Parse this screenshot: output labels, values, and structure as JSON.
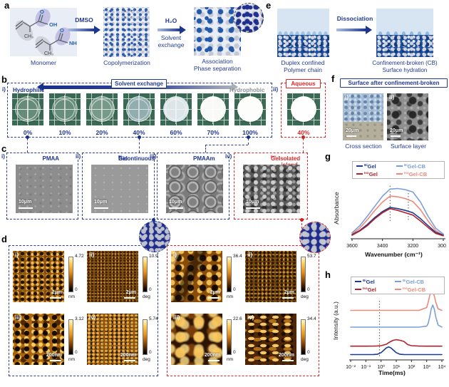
{
  "panels": {
    "a": {
      "label": "a",
      "chem": {
        "o1": "O",
        "oh": "OH",
        "ch3a": "CH₃",
        "o2": "O",
        "nh2": "NH₂",
        "ch3b": "CH₃"
      },
      "monomer_caption": "Monomer",
      "arrow1": "DMSO",
      "step1": "Copolymerization",
      "arrow2_top": "H₂O",
      "arrow2_bottom": "Solvent exchange",
      "step2_line1": "Association",
      "step2_line2": "Phase separation"
    },
    "e": {
      "label": "e",
      "arrow": "Dissociation",
      "left1": "Duplex confined",
      "left2": "Polymer chain",
      "right1": "Confinement-broken (CB)",
      "right2": "Surface hydration"
    },
    "b": {
      "label": "b",
      "i": "i)",
      "ii": "ii)",
      "hydrophilic": "Hydrophilic",
      "hydrophobic": "Hydrophobic",
      "arrow_label": "Solvent exchange",
      "aqueous": "Aqueous",
      "percentages": [
        "0%",
        "10%",
        "20%",
        "40%",
        "60%",
        "70%",
        "100%"
      ],
      "aqueous_pct": "40%"
    },
    "f": {
      "label": "f",
      "title": "Surface after confinement-broken",
      "i": "i)",
      "ii": "ii)",
      "scale1": "20μm",
      "scale2": "20μm",
      "caption1": "Cross section",
      "caption2": "Surface layer"
    },
    "c": {
      "label": "c",
      "items": [
        {
          "num": "i)",
          "title_pre": "PMAA",
          "title_sup": "",
          "title_post": "",
          "scale": "10μm"
        },
        {
          "num": "ii)",
          "title_pre": "Bicontinuous ",
          "title_sup": "Bi",
          "title_post": "Gel",
          "scale": "10μm"
        },
        {
          "num": "iii)",
          "title_pre": "PMAAm",
          "title_sup": "",
          "title_post": "",
          "scale": "10μm"
        },
        {
          "num": "iv)",
          "title_pre": "Isolated island ",
          "title_sup": "Iso",
          "title_post": "Gel",
          "scale": "10μm"
        }
      ]
    },
    "d": {
      "label": "d",
      "blue": [
        {
          "num": "i)",
          "max": "4.72",
          "min": "0",
          "unit": "nm",
          "scale": "2μm"
        },
        {
          "num": "ii)",
          "max": "10.9",
          "min": "0",
          "unit": "deg",
          "scale": "2μm"
        },
        {
          "num": "iii)",
          "max": "3.12",
          "min": "0",
          "unit": "nm",
          "scale": "200nm"
        },
        {
          "num": "iv)",
          "max": "5.74",
          "min": "0",
          "unit": "deg",
          "scale": "200nm"
        }
      ],
      "red": [
        {
          "num": "i)",
          "max": "36.4",
          "min": "0",
          "unit": "nm",
          "scale": "2μm"
        },
        {
          "num": "ii)",
          "max": "53.7",
          "min": "0",
          "unit": "deg",
          "scale": "2μm"
        },
        {
          "num": "iii)",
          "max": "22.6",
          "min": "0",
          "unit": "nm",
          "scale": "200nm"
        },
        {
          "num": "iv)",
          "max": "34.4",
          "min": "0",
          "unit": "deg",
          "scale": "200nm"
        }
      ]
    },
    "g": {
      "label": "g",
      "xlabel": "Wavenumber (cm⁻¹)",
      "ylabel": "Absorbance"
    },
    "h": {
      "label": "h",
      "xlabel": "Time(ms)",
      "ylabel": "Intensity (a.u.)"
    }
  },
  "legend": [
    {
      "sup": "Bi",
      "base": "Gel",
      "color": "#1c3a8e"
    },
    {
      "sup": "Iso",
      "base": "Gel",
      "color": "#b22228"
    },
    {
      "sup": "Bi",
      "base": "Gel-CB",
      "color": "#7aa0d6"
    },
    {
      "sup": "Iso",
      "base": "Gel-CB",
      "color": "#f0897b"
    }
  ],
  "colors": {
    "navy": "#1d3390",
    "red": "#e02528",
    "gray": "#8b929c"
  },
  "chart_data": [
    {
      "id": "chart-g",
      "panel": "g",
      "type": "line",
      "xlabel": "Wavenumber (cm⁻¹)",
      "ylabel": "Absorbance",
      "xlim": [
        3600,
        3000
      ],
      "x": [
        3600,
        3550,
        3500,
        3450,
        3400,
        3350,
        3300,
        3250,
        3200,
        3150,
        3100,
        3050,
        3000
      ],
      "x_ticks": [
        {
          "v": 3600,
          "label": "3600"
        },
        {
          "v": 3400,
          "label": "3400"
        },
        {
          "v": 3200,
          "label": "3200"
        },
        {
          "v": 3000,
          "label": "3000"
        }
      ],
      "guides": [
        {
          "x": 3350,
          "y0": 0.3,
          "y1": 0.92
        },
        {
          "x": 3230,
          "y0": 0.32,
          "y1": 0.85
        }
      ],
      "series": [
        {
          "name": "BiGel-CB",
          "color": "#7aa0d6",
          "y": [
            0.1,
            0.22,
            0.38,
            0.55,
            0.72,
            0.84,
            0.85,
            0.83,
            0.79,
            0.62,
            0.38,
            0.18,
            0.08
          ]
        },
        {
          "name": "IsoGel-CB",
          "color": "#f0897b",
          "y": [
            0.08,
            0.18,
            0.32,
            0.48,
            0.62,
            0.72,
            0.71,
            0.68,
            0.63,
            0.49,
            0.3,
            0.14,
            0.06
          ]
        },
        {
          "name": "BiGel",
          "color": "#1c3a8e",
          "y": [
            0.07,
            0.14,
            0.24,
            0.36,
            0.46,
            0.53,
            0.51,
            0.48,
            0.44,
            0.34,
            0.22,
            0.11,
            0.06
          ]
        },
        {
          "name": "IsoGel",
          "color": "#b22228",
          "y": [
            0.06,
            0.13,
            0.22,
            0.34,
            0.44,
            0.51,
            0.48,
            0.44,
            0.4,
            0.3,
            0.19,
            0.09,
            0.05
          ]
        }
      ],
      "legend_position": "top"
    },
    {
      "id": "chart-h",
      "panel": "h",
      "type": "line",
      "x_log": true,
      "xlabel": "Time(ms)",
      "ylabel": "Intensity (a.u.)",
      "xlim": [
        -2,
        4
      ],
      "x": [
        -2,
        -1.5,
        -1,
        -0.5,
        -0.25,
        0,
        0.2,
        0.35,
        0.5,
        0.65,
        0.8,
        1,
        1.25,
        1.5,
        1.75,
        2,
        2.5,
        3,
        3.1,
        3.2,
        3.3,
        3.4,
        3.5,
        3.6,
        3.75,
        4
      ],
      "x_ticks": [
        {
          "v": -2,
          "label": "10⁻²"
        },
        {
          "v": -1,
          "label": "10⁻¹"
        },
        {
          "v": 0,
          "label": "10⁰"
        },
        {
          "v": 1,
          "label": "10¹"
        },
        {
          "v": 2,
          "label": "10²"
        },
        {
          "v": 3,
          "label": "10³"
        },
        {
          "v": 4,
          "label": "10⁴"
        }
      ],
      "guides": [
        {
          "x": -0.1,
          "y0": 0.05,
          "y1": 0.78
        }
      ],
      "series": [
        {
          "name": "BiGel",
          "color": "#1c3a8e",
          "y": [
            0.07,
            0.07,
            0.07,
            0.071,
            0.074,
            0.095,
            0.131,
            0.158,
            0.17,
            0.158,
            0.131,
            0.095,
            0.074,
            0.071,
            0.07,
            0.07,
            0.07,
            0.07,
            0.07,
            0.07,
            0.07,
            0.07,
            0.07,
            0.07,
            0.07,
            0.07
          ]
        },
        {
          "name": "IsoGel",
          "color": "#b22228",
          "y": [
            0.18,
            0.18,
            0.18,
            0.181,
            0.183,
            0.187,
            0.197,
            0.206,
            0.226,
            0.243,
            0.257,
            0.265,
            0.257,
            0.243,
            0.201,
            0.187,
            0.181,
            0.18,
            0.18,
            0.18,
            0.18,
            0.18,
            0.18,
            0.18,
            0.18,
            0.18
          ]
        },
        {
          "name": "BiGel-CB",
          "color": "#7aa0d6",
          "y": [
            0.43,
            0.43,
            0.43,
            0.43,
            0.43,
            0.43,
            0.43,
            0.43,
            0.43,
            0.43,
            0.43,
            0.43,
            0.43,
            0.43,
            0.43,
            0.43,
            0.43,
            0.443,
            0.48,
            0.563,
            0.669,
            0.72,
            0.669,
            0.563,
            0.457,
            0.431
          ]
        },
        {
          "name": "IsoGel-CB",
          "color": "#f0897b",
          "y": [
            0.65,
            0.65,
            0.65,
            0.65,
            0.65,
            0.65,
            0.65,
            0.65,
            0.65,
            0.65,
            0.65,
            0.65,
            0.65,
            0.65,
            0.65,
            0.65,
            0.65,
            0.687,
            0.755,
            0.84,
            0.9,
            0.9,
            0.84,
            0.755,
            0.67,
            0.65
          ]
        }
      ],
      "legend_position": "top"
    }
  ]
}
